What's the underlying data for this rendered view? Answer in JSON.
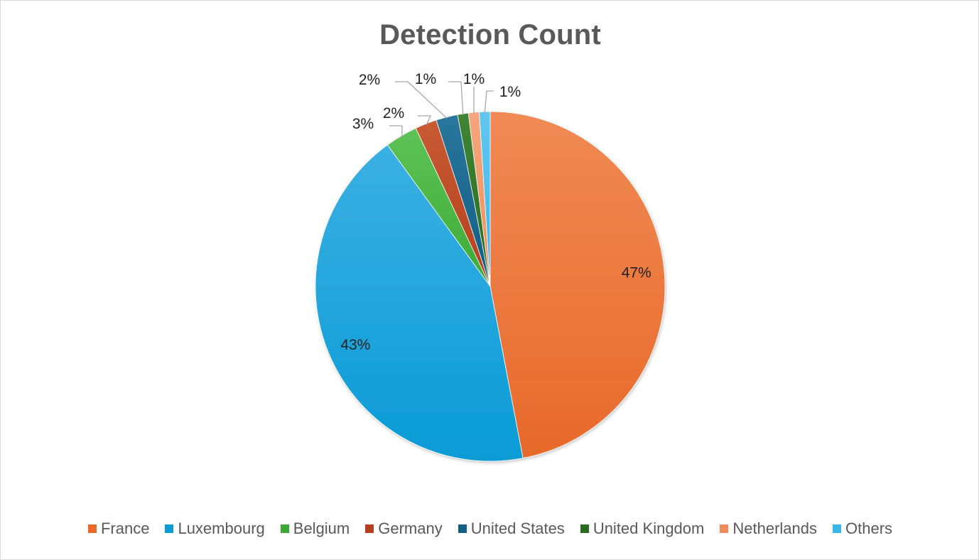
{
  "chart_data": {
    "type": "pie",
    "title": "Detection Count",
    "legend_position": "bottom",
    "data_labels": "percent",
    "slices": [
      {
        "name": "France",
        "value": 47,
        "label": "47%",
        "color": "#E8692A",
        "color_light": "#F08A55"
      },
      {
        "name": "Luxembourg",
        "value": 43,
        "label": "43%",
        "color": "#0A9BD6",
        "color_light": "#3BB0E3"
      },
      {
        "name": "Belgium",
        "value": 3,
        "label": "3%",
        "color": "#3BAA35",
        "color_light": "#5EC356"
      },
      {
        "name": "Germany",
        "value": 2,
        "label": "2%",
        "color": "#B5401C",
        "color_light": "#C75A34"
      },
      {
        "name": "United States",
        "value": 2,
        "label": "2%",
        "color": "#115E85",
        "color_light": "#2A769C"
      },
      {
        "name": "United Kingdom",
        "value": 1,
        "label": "1%",
        "color": "#2C6B22",
        "color_light": "#3F8434"
      },
      {
        "name": "Netherlands",
        "value": 1,
        "label": "1%",
        "color": "#F08C5C",
        "color_light": "#F4A67E"
      },
      {
        "name": "Others",
        "value": 1,
        "label": "1%",
        "color": "#3CB6EA",
        "color_light": "#62C7F0"
      }
    ]
  }
}
